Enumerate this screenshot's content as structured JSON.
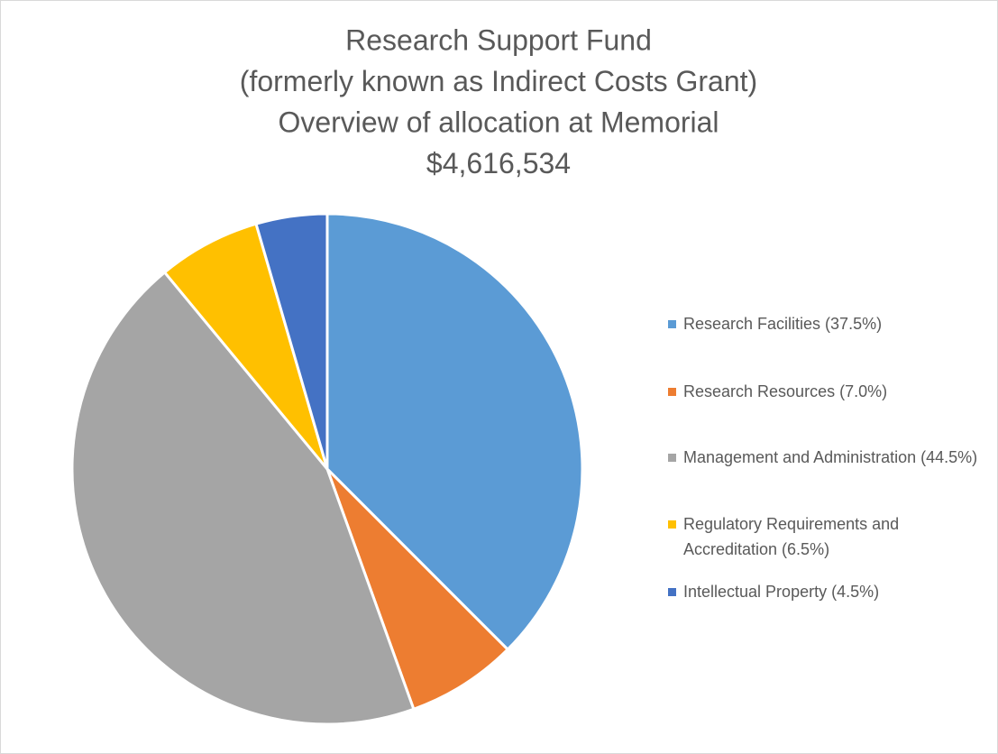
{
  "chart_data": {
    "type": "pie",
    "title": [
      "Research Support Fund",
      "(formerly known as Indirect Costs Grant)",
      "Overview of allocation at Memorial",
      "$4,616,534"
    ],
    "categories": [
      "Research Facilities (37.5%)",
      "Research Resources (7.0%)",
      "Management and Administration (44.5%)",
      "Regulatory Requirements and Accreditation (6.5%)",
      "Intellectual Property (4.5%)"
    ],
    "values": [
      37.5,
      7.0,
      44.5,
      6.5,
      4.5
    ],
    "colors": [
      "#5b9bd5",
      "#ed7d31",
      "#a5a5a5",
      "#ffc000",
      "#4472c4"
    ],
    "legend": "right"
  }
}
